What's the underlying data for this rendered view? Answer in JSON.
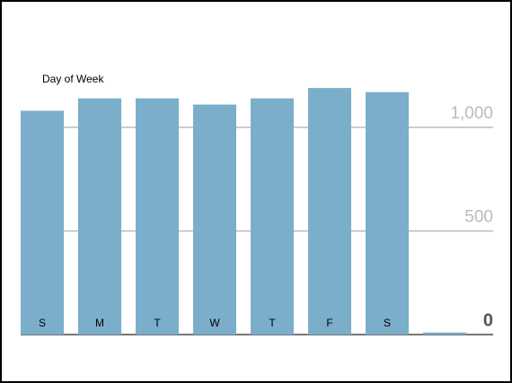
{
  "chart_data": {
    "type": "bar",
    "title": "Day of Week",
    "categories": [
      "S",
      "M",
      "T",
      "W",
      "T",
      "F",
      "S",
      null
    ],
    "values": [
      1080,
      1140,
      1140,
      1110,
      1140,
      1190,
      1170,
      10
    ],
    "color": "#7aaecb",
    "ylim": [
      0,
      1250
    ],
    "yticks": [
      0,
      500,
      {
        "value": 1000,
        "label": "1,000"
      }
    ],
    "grid": true
  }
}
